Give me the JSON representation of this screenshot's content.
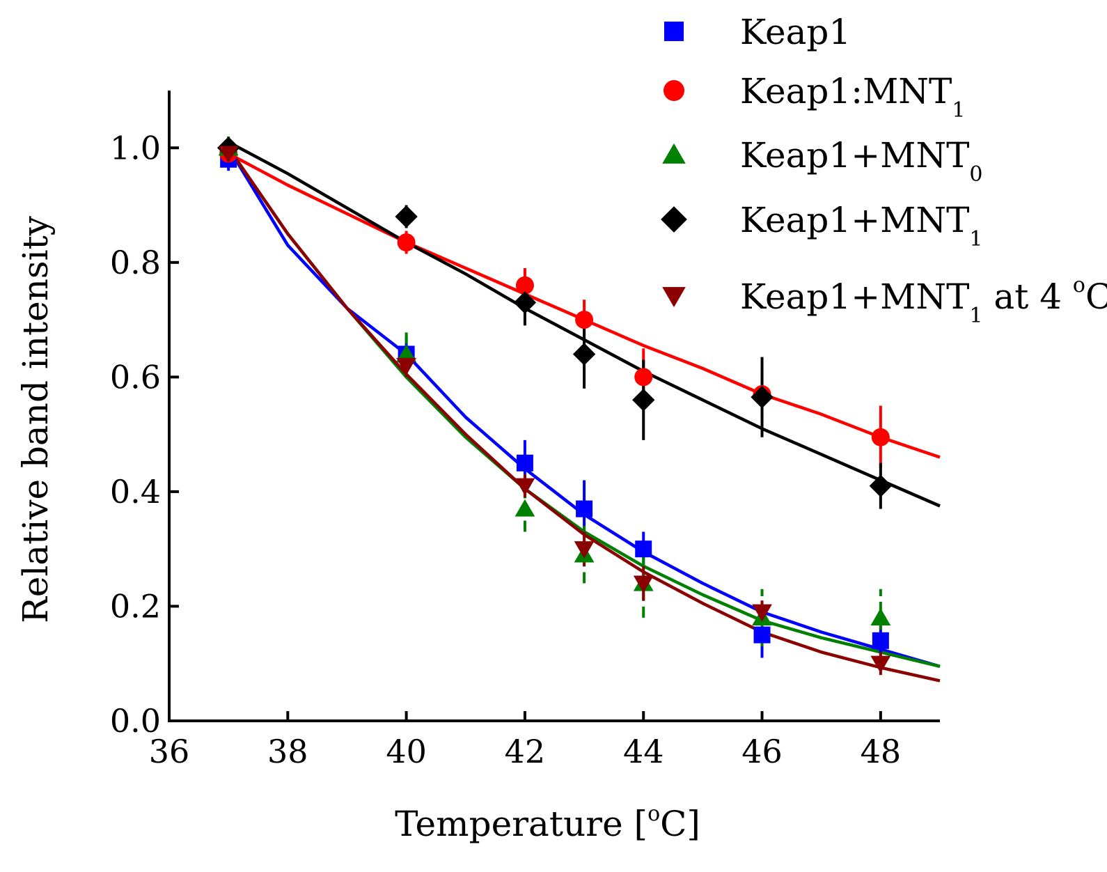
{
  "chart_data": {
    "type": "scatter",
    "title": "",
    "xlabel": "Temperature [",
    "xlabel_degree": "o",
    "xlabel_unit": "C]",
    "ylabel": "Relative band intensity",
    "xlim": [
      36,
      49
    ],
    "ylim": [
      0,
      1.1
    ],
    "x_ticks": [
      36,
      38,
      40,
      42,
      44,
      46,
      48
    ],
    "x_tick_labels": [
      "36",
      "38",
      "40",
      "42",
      "44",
      "46",
      "48"
    ],
    "y_ticks": [
      0.0,
      0.2,
      0.4,
      0.6,
      0.8,
      1.0
    ],
    "y_tick_labels": [
      "0.0",
      "0.2",
      "0.4",
      "0.6",
      "0.8",
      "1.0"
    ],
    "grid": false,
    "legend_position": "top-right",
    "series": [
      {
        "name": "Keap1",
        "legend_base": "Keap1",
        "legend_sub": "",
        "legend_suffix": "",
        "marker": "square",
        "color": "#0000ff",
        "x": [
          37,
          40,
          42,
          43,
          44,
          46,
          48
        ],
        "y": [
          0.98,
          0.64,
          0.45,
          0.37,
          0.3,
          0.15,
          0.14
        ],
        "err": [
          0.02,
          0.03,
          0.04,
          0.05,
          0.03,
          0.04,
          0.04
        ],
        "fit": [
          [
            37,
            1.0
          ],
          [
            38,
            0.83
          ],
          [
            39,
            0.72
          ],
          [
            40,
            0.64
          ],
          [
            41,
            0.53
          ],
          [
            42,
            0.44
          ],
          [
            43,
            0.36
          ],
          [
            44,
            0.295
          ],
          [
            45,
            0.24
          ],
          [
            46,
            0.19
          ],
          [
            47,
            0.155
          ],
          [
            48,
            0.125
          ],
          [
            49,
            0.095
          ]
        ]
      },
      {
        "name": "Keap1:MNT1",
        "legend_base": "Keap1:MNT",
        "legend_sub": "1",
        "legend_suffix": "",
        "marker": "circle",
        "color": "#ff0000",
        "x": [
          37,
          40,
          42,
          43,
          44,
          46,
          48
        ],
        "y": [
          0.99,
          0.835,
          0.76,
          0.7,
          0.6,
          0.57,
          0.495
        ],
        "err": [
          0.02,
          0.02,
          0.03,
          0.035,
          0.05,
          0.04,
          0.055
        ],
        "fit": [
          [
            37,
            0.99
          ],
          [
            38,
            0.935
          ],
          [
            39,
            0.885
          ],
          [
            40,
            0.835
          ],
          [
            41,
            0.79
          ],
          [
            42,
            0.745
          ],
          [
            43,
            0.7
          ],
          [
            44,
            0.655
          ],
          [
            45,
            0.615
          ],
          [
            46,
            0.57
          ],
          [
            47,
            0.535
          ],
          [
            48,
            0.495
          ],
          [
            49,
            0.46
          ]
        ]
      },
      {
        "name": "Keap1+MNT0",
        "legend_base": "Keap1+MNT",
        "legend_sub": "0",
        "legend_suffix": "",
        "marker": "triangle-up",
        "color": "#008000",
        "x": [
          37,
          40,
          42,
          43,
          44,
          46,
          48
        ],
        "y": [
          1.0,
          0.64,
          0.37,
          0.29,
          0.24,
          0.18,
          0.18
        ],
        "err": [
          0.02,
          0.04,
          0.04,
          0.05,
          0.06,
          0.05,
          0.05
        ],
        "fit": [
          [
            37,
            1.0
          ],
          [
            38,
            0.85
          ],
          [
            39,
            0.72
          ],
          [
            40,
            0.6
          ],
          [
            41,
            0.495
          ],
          [
            42,
            0.405
          ],
          [
            43,
            0.33
          ],
          [
            44,
            0.27
          ],
          [
            45,
            0.22
          ],
          [
            46,
            0.175
          ],
          [
            47,
            0.145
          ],
          [
            48,
            0.12
          ],
          [
            49,
            0.095
          ]
        ]
      },
      {
        "name": "Keap1+MNT1",
        "legend_base": "Keap1+MNT",
        "legend_sub": "1",
        "legend_suffix": "",
        "marker": "diamond",
        "color": "#000000",
        "x": [
          37,
          40,
          42,
          43,
          44,
          46,
          48
        ],
        "y": [
          1.0,
          0.88,
          0.73,
          0.64,
          0.56,
          0.565,
          0.41
        ],
        "err": [
          0.01,
          0.02,
          0.04,
          0.06,
          0.07,
          0.07,
          0.04
        ],
        "fit": [
          [
            37,
            1.01
          ],
          [
            38,
            0.955
          ],
          [
            39,
            0.895
          ],
          [
            40,
            0.835
          ],
          [
            41,
            0.78
          ],
          [
            42,
            0.72
          ],
          [
            43,
            0.665
          ],
          [
            44,
            0.61
          ],
          [
            45,
            0.56
          ],
          [
            46,
            0.51
          ],
          [
            47,
            0.465
          ],
          [
            48,
            0.42
          ],
          [
            49,
            0.375
          ]
        ]
      },
      {
        "name": "Keap1+MNT1 at 4 oC",
        "legend_base": "Keap1+MNT",
        "legend_sub": "1",
        "legend_suffix": " at 4 ",
        "legend_degree": "o",
        "legend_unit": "C",
        "marker": "triangle-down",
        "color": "#8b0000",
        "x": [
          37,
          40,
          42,
          43,
          44,
          46,
          48
        ],
        "y": [
          0.99,
          0.62,
          0.41,
          0.3,
          0.24,
          0.19,
          0.1
        ],
        "err": [
          0.01,
          0.02,
          0.02,
          0.03,
          0.03,
          0.02,
          0.02
        ],
        "fit": [
          [
            37,
            1.0
          ],
          [
            38,
            0.85
          ],
          [
            39,
            0.72
          ],
          [
            40,
            0.605
          ],
          [
            41,
            0.5
          ],
          [
            42,
            0.405
          ],
          [
            43,
            0.325
          ],
          [
            44,
            0.26
          ],
          [
            45,
            0.205
          ],
          [
            46,
            0.155
          ],
          [
            47,
            0.12
          ],
          [
            48,
            0.093
          ],
          [
            49,
            0.07
          ]
        ]
      }
    ]
  }
}
